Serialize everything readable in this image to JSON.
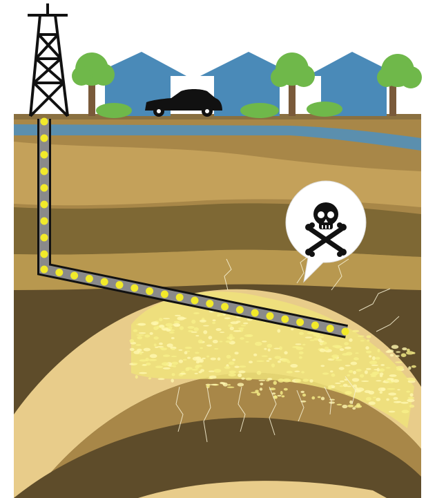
{
  "diagram": {
    "subject": "fracking-well-cross-section",
    "icons": {
      "derrick": "oil-derrick-icon",
      "houses": "house-icon",
      "trees": "tree-icon",
      "car": "car-icon",
      "warning": "skull-and-crossbones-icon"
    },
    "colors": {
      "sky": "#ffffff",
      "house_blue": "#4a8ab8",
      "tree_green": "#6fb84a",
      "tree_trunk": "#7a5a3a",
      "aquifer_blue": "#5b8fae",
      "soil_light": "#c4a15a",
      "soil_mid": "#a88748",
      "soil_dark": "#5e4c2a",
      "shale_light": "#e8cc8a",
      "frack_yellow": "#f4ec6a",
      "pipe_gray": "#8a8a8a",
      "pipe_bead": "#f2ea2a",
      "outline": "#111111"
    }
  }
}
